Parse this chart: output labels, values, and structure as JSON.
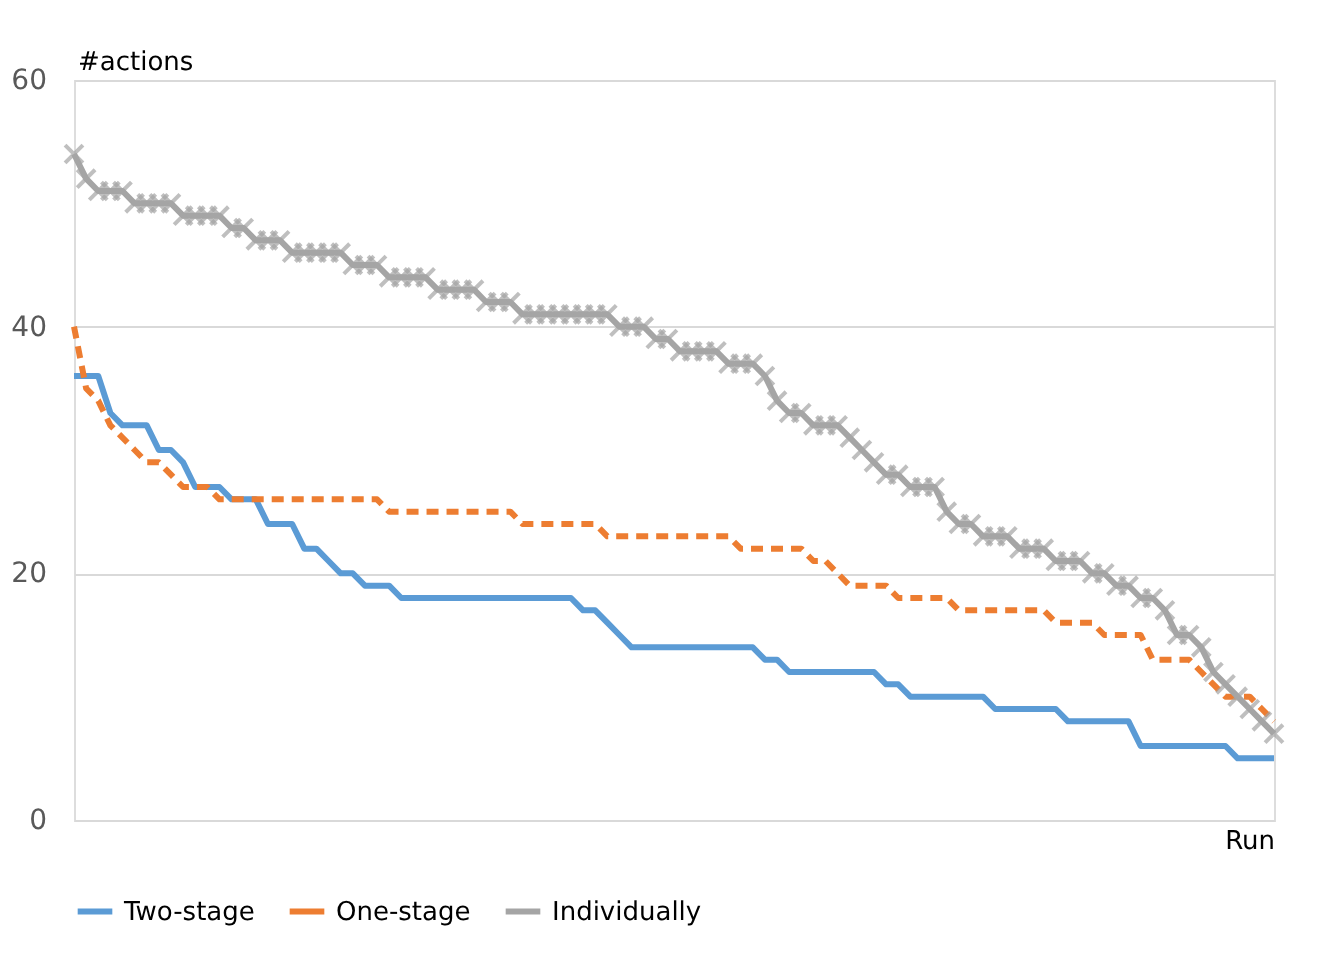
{
  "chart_data": {
    "type": "line",
    "xlabel": "Run",
    "ylabel": "#actions",
    "categories": [
      null,
      null,
      null,
      null,
      null,
      null,
      null,
      null,
      null,
      null,
      null,
      null,
      null,
      null,
      null,
      null,
      null,
      null,
      null,
      null,
      null,
      null,
      null,
      null,
      null,
      null,
      null,
      null,
      null,
      null,
      null,
      null,
      null,
      null,
      null,
      null,
      null,
      null,
      null,
      null,
      null,
      null,
      null,
      null,
      null,
      null,
      null,
      null,
      null,
      null,
      null,
      null,
      null,
      null,
      null,
      null,
      null,
      null,
      null,
      null,
      null,
      null,
      null,
      null,
      null,
      null,
      null,
      null,
      null,
      null,
      null,
      null,
      null,
      null,
      null,
      null,
      null,
      null,
      null,
      null,
      null,
      null,
      null,
      null,
      null,
      null,
      null,
      null,
      null,
      null,
      null,
      null,
      null,
      null,
      null,
      null,
      null,
      null,
      null,
      null
    ],
    "series": [
      {
        "name": "Two-stage",
        "color": "#5b9bd5",
        "line_style": "solid",
        "marker": "none",
        "values": [
          36,
          36,
          36,
          33,
          32,
          32,
          32,
          30,
          30,
          29,
          27,
          27,
          27,
          26,
          26,
          26,
          24,
          24,
          24,
          22,
          22,
          21,
          20,
          20,
          19,
          19,
          19,
          18,
          18,
          18,
          18,
          18,
          18,
          18,
          18,
          18,
          18,
          18,
          18,
          18,
          18,
          18,
          17,
          17,
          16,
          15,
          14,
          14,
          14,
          14,
          14,
          14,
          14,
          14,
          14,
          14,
          14,
          13,
          13,
          12,
          12,
          12,
          12,
          12,
          12,
          12,
          12,
          11,
          11,
          10,
          10,
          10,
          10,
          10,
          10,
          10,
          9,
          9,
          9,
          9,
          9,
          9,
          8,
          8,
          8,
          8,
          8,
          8,
          6,
          6,
          6,
          6,
          6,
          6,
          6,
          6,
          5,
          5,
          5,
          5
        ]
      },
      {
        "name": "One-stage",
        "color": "#ed7d31",
        "line_style": "dashed",
        "marker": "none",
        "values": [
          40,
          35,
          34,
          32,
          31,
          30,
          29,
          29,
          28,
          27,
          27,
          27,
          26,
          26,
          26,
          26,
          26,
          26,
          26,
          26,
          26,
          26,
          26,
          26,
          26,
          26,
          25,
          25,
          25,
          25,
          25,
          25,
          25,
          25,
          25,
          25,
          25,
          24,
          24,
          24,
          24,
          24,
          24,
          24,
          23,
          23,
          23,
          23,
          23,
          23,
          23,
          23,
          23,
          23,
          23,
          22,
          22,
          22,
          22,
          22,
          22,
          21,
          21,
          20,
          19,
          19,
          19,
          19,
          18,
          18,
          18,
          18,
          18,
          17,
          17,
          17,
          17,
          17,
          17,
          17,
          17,
          16,
          16,
          16,
          16,
          15,
          15,
          15,
          15,
          13,
          13,
          13,
          13,
          12,
          11,
          10,
          10,
          10,
          9,
          8
        ]
      },
      {
        "name": "Individually",
        "color": "#a5a5a5",
        "line_style": "solid",
        "marker": "cross",
        "values": [
          54,
          52,
          51,
          51,
          51,
          50,
          50,
          50,
          50,
          49,
          49,
          49,
          49,
          48,
          48,
          47,
          47,
          47,
          46,
          46,
          46,
          46,
          46,
          45,
          45,
          45,
          44,
          44,
          44,
          44,
          43,
          43,
          43,
          43,
          42,
          42,
          42,
          41,
          41,
          41,
          41,
          41,
          41,
          41,
          41,
          40,
          40,
          40,
          39,
          39,
          38,
          38,
          38,
          38,
          37,
          37,
          37,
          36,
          34,
          33,
          33,
          32,
          32,
          32,
          31,
          30,
          29,
          28,
          28,
          27,
          27,
          27,
          25,
          24,
          24,
          23,
          23,
          23,
          22,
          22,
          22,
          21,
          21,
          21,
          20,
          20,
          19,
          19,
          18,
          18,
          17,
          15,
          15,
          14,
          12,
          11,
          10,
          9,
          8,
          7
        ]
      }
    ],
    "ylim": [
      0,
      60
    ],
    "yticks": [
      0,
      20,
      40,
      60
    ],
    "grid": "y",
    "legend": "bottom",
    "tick_labels": "y"
  }
}
